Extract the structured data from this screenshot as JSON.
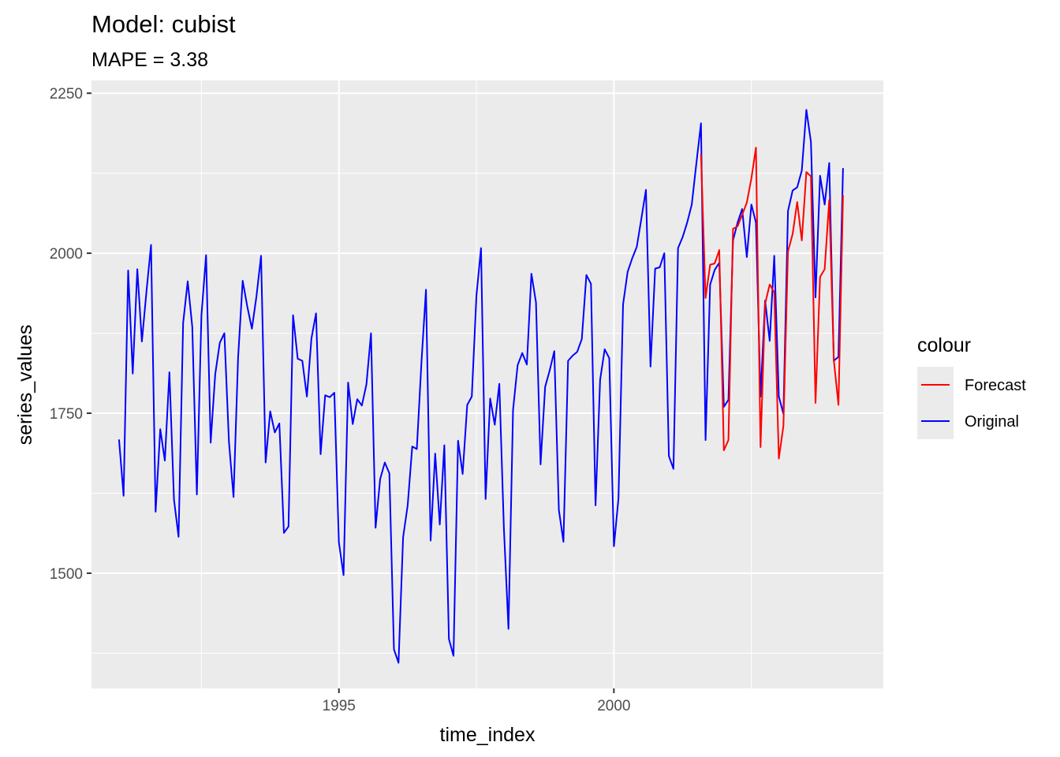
{
  "chart_data": {
    "type": "line",
    "title": "Model:  cubist",
    "subtitle": "MAPE = 3.38",
    "xlabel": "time_index",
    "ylabel": "series_values",
    "xlim": [
      1990.5,
      2004.9
    ],
    "ylim": [
      1320,
      2270
    ],
    "x_ticks": [
      1995,
      2000
    ],
    "x_tick_labels": [
      "1995",
      "2000"
    ],
    "y_ticks": [
      1500,
      1750,
      2000,
      2250
    ],
    "y_tick_labels": [
      "1500",
      "1750",
      "2000",
      "2250"
    ],
    "grid": true,
    "legend": {
      "title": "colour",
      "position": "right",
      "entries": [
        {
          "label": "Forecast",
          "color": "#ff0000"
        },
        {
          "label": "Original",
          "color": "#0000ff"
        }
      ]
    },
    "series": [
      {
        "name": "Original",
        "color": "#0000ff",
        "x_start": 1991.0,
        "step": 0.083333,
        "values": [
          1709,
          1621,
          1973,
          1812,
          1975,
          1862,
          1940,
          2013,
          1596,
          1725,
          1676,
          1814,
          1615,
          1557,
          1891,
          1956,
          1885,
          1623,
          1903,
          1997,
          1704,
          1811,
          1860,
          1875,
          1705,
          1619,
          1837,
          1957,
          1917,
          1882,
          1933,
          1996,
          1673,
          1753,
          1720,
          1734,
          1563,
          1573,
          1903,
          1835,
          1832,
          1776,
          1867,
          1906,
          1686,
          1778,
          1775,
          1782,
          1548,
          1497,
          1798,
          1733,
          1772,
          1762,
          1795,
          1875,
          1571,
          1647,
          1673,
          1656,
          1381,
          1360,
          1556,
          1606,
          1698,
          1694,
          1828,
          1943,
          1551,
          1687,
          1576,
          1700,
          1397,
          1371,
          1707,
          1655,
          1763,
          1776,
          1934,
          2008,
          1616,
          1773,
          1732,
          1796,
          1570,
          1413,
          1755,
          1825,
          1844,
          1826,
          1968,
          1923,
          1670,
          1791,
          1817,
          1847,
          1599,
          1549,
          1832,
          1840,
          1846,
          1866,
          1966,
          1952,
          1606,
          1802,
          1850,
          1836,
          1542,
          1617,
          1920,
          1971,
          1992,
          2010,
          2054,
          2099,
          1823,
          1976,
          1978,
          2000,
          1683,
          1663,
          2008,
          2025,
          2048,
          2076,
          2140,
          2203,
          1708,
          1951,
          1974,
          1985,
          1760,
          1771,
          2020,
          2048,
          2069,
          1994,
          2076,
          2048,
          1776,
          1926,
          1863,
          1996,
          1776,
          1749,
          2066,
          2098,
          2103,
          2129,
          2224,
          2174,
          1931,
          2121,
          2076,
          2141,
          1832,
          1838,
          2133
        ]
      },
      {
        "name": "Forecast",
        "color": "#ff0000",
        "x_start": 2001.5833,
        "step": 0.083333,
        "values": [
          2155,
          1930,
          1982,
          1984,
          2005,
          1692,
          1708,
          2038,
          2042,
          2060,
          2079,
          2117,
          2165,
          1697,
          1921,
          1951,
          1939,
          1679,
          1730,
          2003,
          2030,
          2080,
          2020,
          2127,
          2120,
          1766,
          1963,
          1975,
          2083,
          1833,
          1763,
          2091
        ]
      }
    ]
  }
}
